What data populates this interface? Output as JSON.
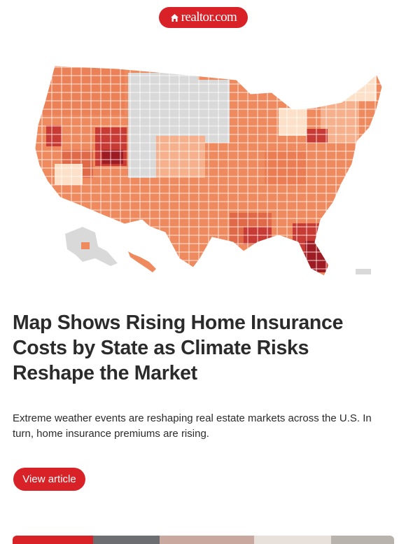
{
  "header": {
    "logo_text": "realtor.com",
    "logo_icon": "house-icon"
  },
  "hero": {
    "image_alt": "",
    "map_colors": [
      "#fde0c8",
      "#f6b18c",
      "#ef8a5f",
      "#e06a48",
      "#c83a34",
      "#9e1b23",
      "#d9d9d9"
    ]
  },
  "article": {
    "title": "Map Shows Rising Home Insurance Costs by State as Climate Risks Reshape the Market",
    "summary": "Extreme weather events are reshaping real estate markets across the U.S. In turn, home insurance premiums are rising.",
    "cta_label": "View article"
  },
  "colors": {
    "brand": "#d92228",
    "text": "#2b2b2b"
  }
}
